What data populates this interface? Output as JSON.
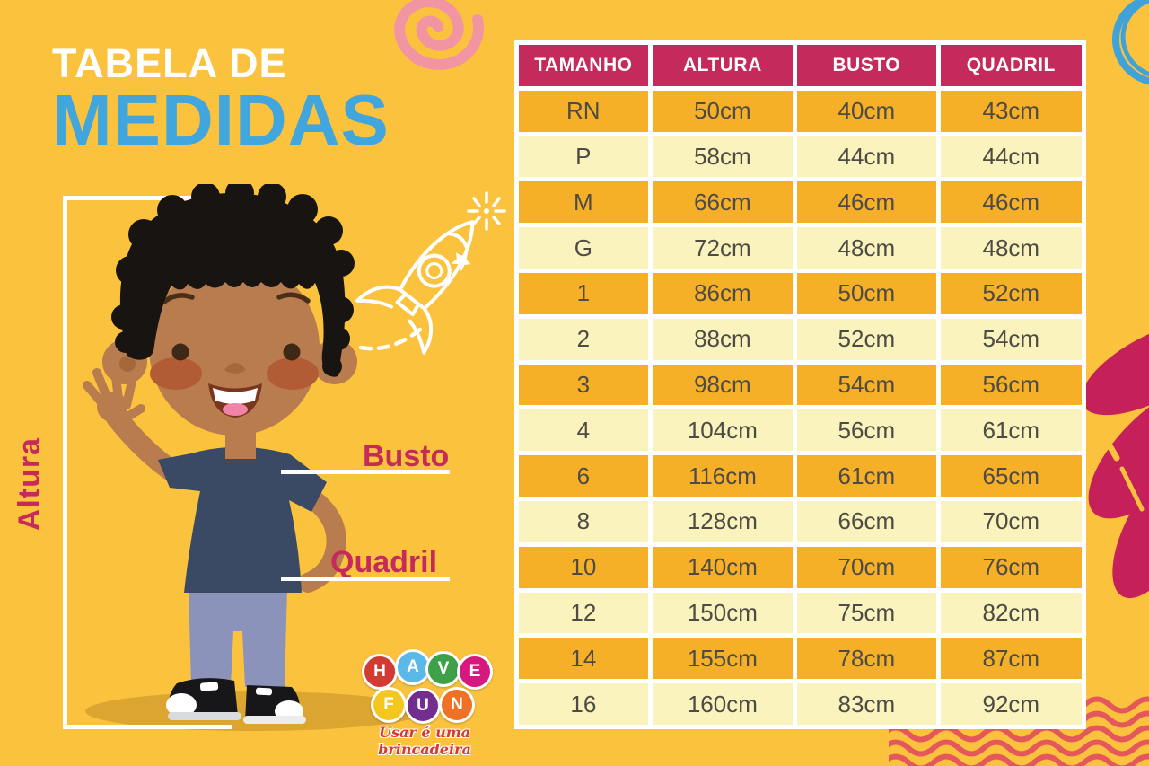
{
  "poster": {
    "background_color": "#FBC23E",
    "title_line1": "TABELA DE",
    "title_line2": "MEDIDAS",
    "title_line1_color": "#FFFFFF",
    "title_line2_color": "#41A6DD"
  },
  "measure_labels": {
    "height": "Altura",
    "bust": "Busto",
    "hip": "Quadril",
    "label_color": "#C52A5B"
  },
  "size_table": {
    "header_bg": "#C42A5B",
    "header_text_color": "#FFFFFF",
    "row_dark_bg": "#F6B028",
    "row_light_bg": "#FAF3BD",
    "cell_text_color": "#4E4B44",
    "headers": [
      "TAMANHO",
      "ALTURA",
      "BUSTO",
      "QUADRIL"
    ],
    "rows": [
      [
        "RN",
        "50cm",
        "40cm",
        "43cm"
      ],
      [
        "P",
        "58cm",
        "44cm",
        "44cm"
      ],
      [
        "M",
        "66cm",
        "46cm",
        "46cm"
      ],
      [
        "G",
        "72cm",
        "48cm",
        "48cm"
      ],
      [
        "1",
        "86cm",
        "50cm",
        "52cm"
      ],
      [
        "2",
        "88cm",
        "52cm",
        "54cm"
      ],
      [
        "3",
        "98cm",
        "54cm",
        "56cm"
      ],
      [
        "4",
        "104cm",
        "56cm",
        "61cm"
      ],
      [
        "6",
        "116cm",
        "61cm",
        "65cm"
      ],
      [
        "8",
        "128cm",
        "66cm",
        "70cm"
      ],
      [
        "10",
        "140cm",
        "70cm",
        "76cm"
      ],
      [
        "12",
        "150cm",
        "75cm",
        "82cm"
      ],
      [
        "14",
        "155cm",
        "78cm",
        "87cm"
      ],
      [
        "16",
        "160cm",
        "83cm",
        "92cm"
      ]
    ]
  },
  "logo": {
    "letters": [
      {
        "letter": "H",
        "color": "#D23B31"
      },
      {
        "letter": "A",
        "color": "#5AB9E8"
      },
      {
        "letter": "V",
        "color": "#3FA04A"
      },
      {
        "letter": "E",
        "color": "#D6197D"
      },
      {
        "letter": "F",
        "color": "#F3C71F"
      },
      {
        "letter": "U",
        "color": "#732D8E"
      },
      {
        "letter": "N",
        "color": "#EE7125"
      }
    ],
    "tagline": "Usar é uma brincadeira"
  },
  "decorations": {
    "pink_spiral_color": "#F295A3",
    "blue_circle_color": "#3FA3D9",
    "petals_color": "#C5205A",
    "waves_color": "#E4575B"
  },
  "chart_data": {
    "type": "table",
    "title": "TABELA DE MEDIDAS",
    "columns": [
      "TAMANHO",
      "ALTURA",
      "BUSTO",
      "QUADRIL"
    ],
    "rows": [
      [
        "RN",
        "50cm",
        "40cm",
        "43cm"
      ],
      [
        "P",
        "58cm",
        "44cm",
        "44cm"
      ],
      [
        "M",
        "66cm",
        "46cm",
        "46cm"
      ],
      [
        "G",
        "72cm",
        "48cm",
        "48cm"
      ],
      [
        "1",
        "86cm",
        "50cm",
        "52cm"
      ],
      [
        "2",
        "88cm",
        "52cm",
        "54cm"
      ],
      [
        "3",
        "98cm",
        "54cm",
        "56cm"
      ],
      [
        "4",
        "104cm",
        "56cm",
        "61cm"
      ],
      [
        "6",
        "116cm",
        "61cm",
        "65cm"
      ],
      [
        "8",
        "128cm",
        "66cm",
        "70cm"
      ],
      [
        "10",
        "140cm",
        "70cm",
        "76cm"
      ],
      [
        "12",
        "150cm",
        "75cm",
        "82cm"
      ],
      [
        "14",
        "155cm",
        "78cm",
        "87cm"
      ],
      [
        "16",
        "160cm",
        "83cm",
        "92cm"
      ]
    ]
  }
}
